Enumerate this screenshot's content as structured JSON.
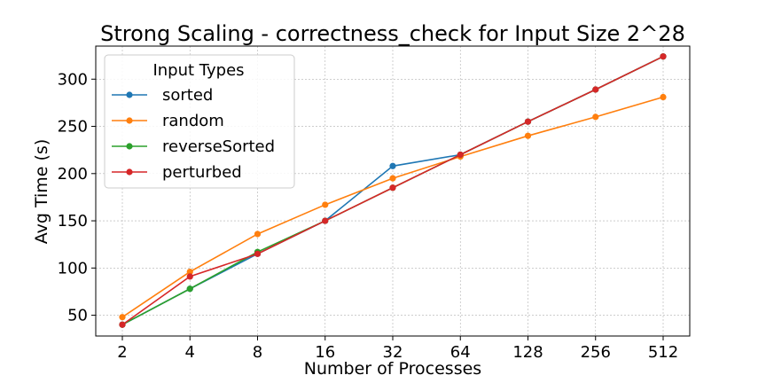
{
  "chart_data": {
    "type": "line",
    "title": "Strong Scaling - correctness_check for Input Size 2^28",
    "xlabel": "Number of Processes",
    "ylabel": "Avg Time (s)",
    "x_scale": "log2",
    "categories": [
      "2",
      "4",
      "8",
      "16",
      "32",
      "64",
      "128",
      "256",
      "512"
    ],
    "yticks": [
      50,
      100,
      150,
      200,
      250,
      300
    ],
    "ylim": [
      28,
      335
    ],
    "grid": true,
    "legend": {
      "title": "Input Types",
      "placement": "top-left"
    },
    "series": [
      {
        "name": "sorted",
        "color": "#1f77b4",
        "values": [
          40,
          78,
          115,
          150,
          208,
          220,
          255,
          289,
          324
        ]
      },
      {
        "name": "random",
        "color": "#ff7f0e",
        "values": [
          48,
          96,
          136,
          167,
          195,
          218,
          240,
          260,
          281
        ]
      },
      {
        "name": "reverseSorted",
        "color": "#2ca02c",
        "values": [
          40,
          78,
          117,
          150,
          185,
          220,
          255,
          289,
          324
        ]
      },
      {
        "name": "perturbed",
        "color": "#d62728",
        "values": [
          40,
          91,
          115,
          150,
          185,
          220,
          255,
          289,
          324
        ]
      }
    ]
  }
}
